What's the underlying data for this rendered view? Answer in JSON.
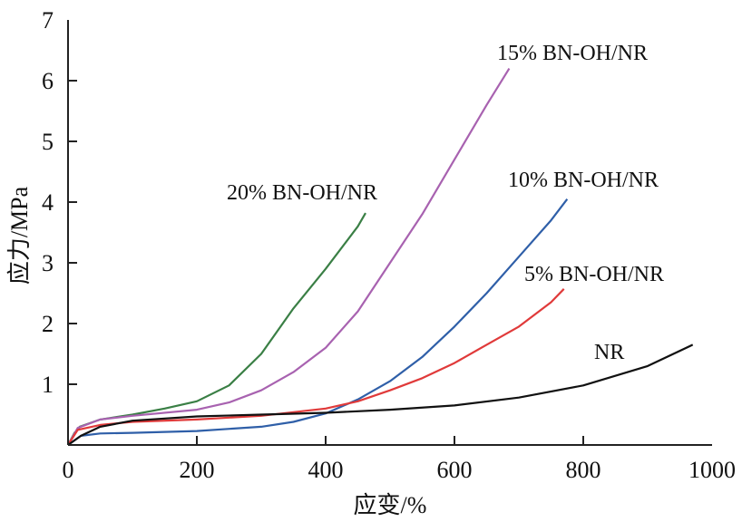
{
  "chart_data": {
    "type": "line",
    "xlabel": "应变/%",
    "ylabel": "应力/MPa",
    "xlim": [
      0,
      1000
    ],
    "ylim": [
      0,
      7
    ],
    "xticks": [
      "0",
      "200",
      "400",
      "600",
      "800",
      "1000"
    ],
    "yticks": [
      "1",
      "2",
      "3",
      "4",
      "5",
      "6",
      "7"
    ],
    "grid": false,
    "series": [
      {
        "name": "20% BN-OH/NR",
        "color": "#3a7f45",
        "x": [
          0,
          10,
          15,
          18,
          50,
          100,
          150,
          200,
          250,
          300,
          350,
          400,
          450,
          462
        ],
        "y": [
          0,
          0.2,
          0.25,
          0.3,
          0.42,
          0.5,
          0.6,
          0.72,
          0.98,
          1.5,
          2.25,
          2.9,
          3.6,
          3.82
        ]
      },
      {
        "name": "15% BN-OH/NR",
        "color": "#a862b0",
        "x": [
          0,
          15,
          50,
          100,
          200,
          250,
          300,
          350,
          400,
          450,
          500,
          550,
          600,
          650,
          685
        ],
        "y": [
          0,
          0.28,
          0.42,
          0.48,
          0.58,
          0.7,
          0.9,
          1.2,
          1.6,
          2.2,
          3.0,
          3.8,
          4.7,
          5.6,
          6.2
        ]
      },
      {
        "name": "10% BN-OH/NR",
        "color": "#2f5fa8",
        "x": [
          0,
          20,
          50,
          100,
          200,
          300,
          350,
          400,
          450,
          500,
          550,
          600,
          650,
          700,
          750,
          775
        ],
        "y": [
          0,
          0.15,
          0.19,
          0.2,
          0.23,
          0.3,
          0.38,
          0.52,
          0.75,
          1.05,
          1.45,
          1.95,
          2.5,
          3.1,
          3.7,
          4.05
        ]
      },
      {
        "name": "5% BN-OH/NR",
        "color": "#e03a3a",
        "x": [
          0,
          15,
          50,
          100,
          200,
          300,
          400,
          450,
          500,
          550,
          600,
          650,
          700,
          750,
          770
        ],
        "y": [
          0,
          0.25,
          0.33,
          0.38,
          0.42,
          0.48,
          0.6,
          0.72,
          0.9,
          1.1,
          1.35,
          1.65,
          1.95,
          2.35,
          2.57
        ]
      },
      {
        "name": "NR",
        "color": "#111111",
        "x": [
          0,
          20,
          50,
          100,
          200,
          300,
          400,
          500,
          600,
          700,
          800,
          900,
          970
        ],
        "y": [
          0,
          0.15,
          0.3,
          0.4,
          0.47,
          0.5,
          0.53,
          0.58,
          0.65,
          0.78,
          0.98,
          1.3,
          1.65
        ]
      }
    ],
    "annotations": [
      "20% BN-OH/NR",
      "15% BN-OH/NR",
      "10% BN-OH/NR",
      "5% BN-OH/NR",
      "NR"
    ]
  }
}
